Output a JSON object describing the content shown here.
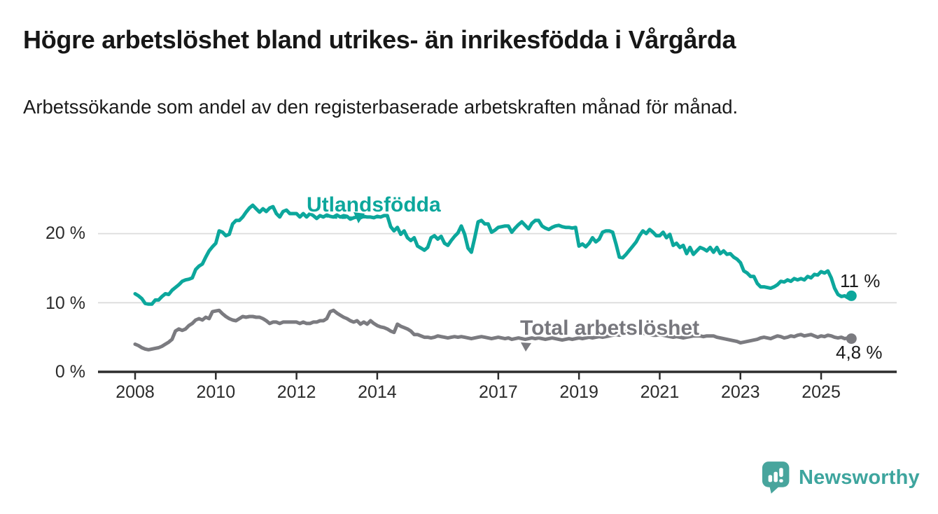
{
  "header": {
    "title": "Högre arbetslöshet bland utrikes- än inrikesfödda i Vårgårda",
    "subtitle": "Arbetssökande som andel av den registerbaserade arbetskraften månad för månad."
  },
  "chart_data": {
    "type": "line",
    "title": "Högre arbetslöshet bland utrikes- än inrikesfödda i Vårgårda",
    "x_axis": {
      "unit": "month",
      "start": "2008-01",
      "end": "2025-10",
      "frequency": "monthly"
    },
    "x_ticks": [
      2008,
      2010,
      2012,
      2014,
      2017,
      2019,
      2021,
      2023,
      2025
    ],
    "y_ticks": [
      {
        "value": 0,
        "label": "0 %"
      },
      {
        "value": 10,
        "label": "10 %"
      },
      {
        "value": 20,
        "label": "20 %"
      }
    ],
    "ylim": [
      0,
      26
    ],
    "grid": "horizontal",
    "legend_position": "inline-labels",
    "series": [
      {
        "name": "Utlandsfödda",
        "color": "#0ca79c",
        "end_label": "11 %",
        "end_value": 11.0,
        "values": [
          11.3,
          11.0,
          10.6,
          9.9,
          9.8,
          9.8,
          10.4,
          10.4,
          10.9,
          11.3,
          11.2,
          11.8,
          12.2,
          12.6,
          13.1,
          13.3,
          13.4,
          13.6,
          14.8,
          15.3,
          15.6,
          16.6,
          17.5,
          18.1,
          18.6,
          20.4,
          20.2,
          19.7,
          19.9,
          21.4,
          21.9,
          21.9,
          22.4,
          23.1,
          23.7,
          24.1,
          23.6,
          23.1,
          23.6,
          23.2,
          23.7,
          23.9,
          22.9,
          22.4,
          23.2,
          23.4,
          22.9,
          22.9,
          22.9,
          22.4,
          22.9,
          22.4,
          22.9,
          22.6,
          22.2,
          22.6,
          22.4,
          22.7,
          22.5,
          22.4,
          22.7,
          22.4,
          22.6,
          22.5,
          22.1,
          22.3,
          22.4,
          22.3,
          22.5,
          22.4,
          22.4,
          22.3,
          22.5,
          22.4,
          22.6,
          22.6,
          21.0,
          20.4,
          20.9,
          19.9,
          20.4,
          19.4,
          19.0,
          19.4,
          18.2,
          17.9,
          17.6,
          18.0,
          19.4,
          19.7,
          19.2,
          19.6,
          18.6,
          18.3,
          19.0,
          19.6,
          20.1,
          21.1,
          19.9,
          17.9,
          17.3,
          19.4,
          21.7,
          21.9,
          21.4,
          21.4,
          20.2,
          20.5,
          20.9,
          21.0,
          21.1,
          21.1,
          20.2,
          20.8,
          21.3,
          21.7,
          21.2,
          20.7,
          21.5,
          21.9,
          21.9,
          21.1,
          20.8,
          20.6,
          20.9,
          21.1,
          21.2,
          21.0,
          20.9,
          20.9,
          20.8,
          20.9,
          18.2,
          18.5,
          18.1,
          18.6,
          19.4,
          18.8,
          19.2,
          20.2,
          20.4,
          20.4,
          20.2,
          18.5,
          16.6,
          16.5,
          17.0,
          17.6,
          18.2,
          18.8,
          19.7,
          20.4,
          20.0,
          20.6,
          20.2,
          19.7,
          19.7,
          20.2,
          19.4,
          19.9,
          18.3,
          18.6,
          18.0,
          18.3,
          17.1,
          18.0,
          17.0,
          17.5,
          18.0,
          17.8,
          17.5,
          18.0,
          17.3,
          18.0,
          17.1,
          17.5,
          17.0,
          17.1,
          16.6,
          16.3,
          15.8,
          14.6,
          14.3,
          13.8,
          13.8,
          12.8,
          12.3,
          12.3,
          12.2,
          12.1,
          12.3,
          12.6,
          13.1,
          13.0,
          13.3,
          13.1,
          13.5,
          13.3,
          13.5,
          13.3,
          13.8,
          13.6,
          14.1,
          14.0,
          14.5,
          14.3,
          14.6,
          13.6,
          12.1,
          11.2,
          10.9,
          11.0,
          10.7,
          11.0
        ]
      },
      {
        "name": "Total arbetslöshet",
        "color": "#7b7b80",
        "end_label": "4,8 %",
        "end_value": 4.8,
        "values": [
          4.0,
          3.8,
          3.5,
          3.3,
          3.2,
          3.3,
          3.4,
          3.5,
          3.7,
          4.0,
          4.3,
          4.7,
          5.9,
          6.2,
          6.0,
          6.2,
          6.7,
          7.0,
          7.5,
          7.7,
          7.5,
          7.9,
          7.7,
          8.7,
          8.8,
          8.9,
          8.4,
          8.0,
          7.7,
          7.5,
          7.4,
          7.7,
          8.0,
          7.9,
          8.0,
          8.0,
          7.9,
          7.9,
          7.7,
          7.4,
          7.0,
          7.2,
          7.2,
          7.0,
          7.2,
          7.2,
          7.2,
          7.2,
          7.2,
          7.0,
          7.2,
          7.0,
          7.0,
          7.2,
          7.2,
          7.4,
          7.4,
          7.7,
          8.7,
          8.9,
          8.5,
          8.2,
          7.9,
          7.7,
          7.4,
          7.2,
          7.4,
          6.9,
          7.2,
          6.9,
          7.4,
          7.0,
          6.7,
          6.5,
          6.4,
          6.2,
          5.9,
          5.7,
          6.9,
          6.6,
          6.4,
          6.2,
          5.9,
          5.4,
          5.4,
          5.2,
          5.0,
          5.0,
          4.9,
          5.0,
          5.2,
          5.1,
          5.0,
          4.9,
          5.0,
          5.1,
          5.0,
          5.1,
          5.0,
          4.9,
          4.8,
          4.9,
          5.0,
          5.1,
          5.0,
          4.9,
          4.8,
          4.9,
          5.0,
          4.9,
          4.8,
          4.9,
          4.7,
          4.8,
          4.9,
          4.8,
          4.7,
          4.8,
          4.9,
          4.8,
          4.9,
          4.8,
          4.7,
          4.8,
          4.9,
          4.8,
          4.7,
          4.6,
          4.7,
          4.8,
          4.7,
          4.8,
          4.9,
          4.8,
          4.9,
          5.0,
          4.9,
          5.0,
          5.1,
          5.0,
          5.1,
          5.2,
          5.3,
          5.4,
          5.3,
          5.5,
          5.8,
          6.0,
          5.9,
          5.8,
          5.7,
          5.6,
          5.5,
          5.4,
          5.3,
          5.3,
          5.4,
          5.3,
          5.2,
          5.1,
          5.0,
          5.1,
          5.0,
          4.9,
          5.0,
          5.1,
          5.2,
          5.2,
          5.2,
          5.1,
          5.2,
          5.2,
          5.2,
          5.0,
          4.9,
          4.8,
          4.7,
          4.6,
          4.5,
          4.4,
          4.2,
          4.3,
          4.4,
          4.5,
          4.6,
          4.7,
          4.9,
          5.0,
          4.9,
          4.8,
          5.0,
          5.2,
          5.1,
          4.9,
          5.0,
          5.2,
          5.1,
          5.3,
          5.4,
          5.2,
          5.3,
          5.4,
          5.2,
          5.0,
          5.2,
          5.1,
          5.3,
          5.2,
          5.0,
          4.9,
          5.0,
          4.8,
          4.9,
          4.8
        ]
      }
    ],
    "colors": {
      "grid": "#dcdcdc",
      "axis": "#2d2d2d",
      "tick_text": "#2b2b2b",
      "value_label_text": "#1b1b1b"
    }
  },
  "logo": {
    "text": "Newsworthy",
    "color": "#3ea59e",
    "icon_color": "#48a59d"
  }
}
